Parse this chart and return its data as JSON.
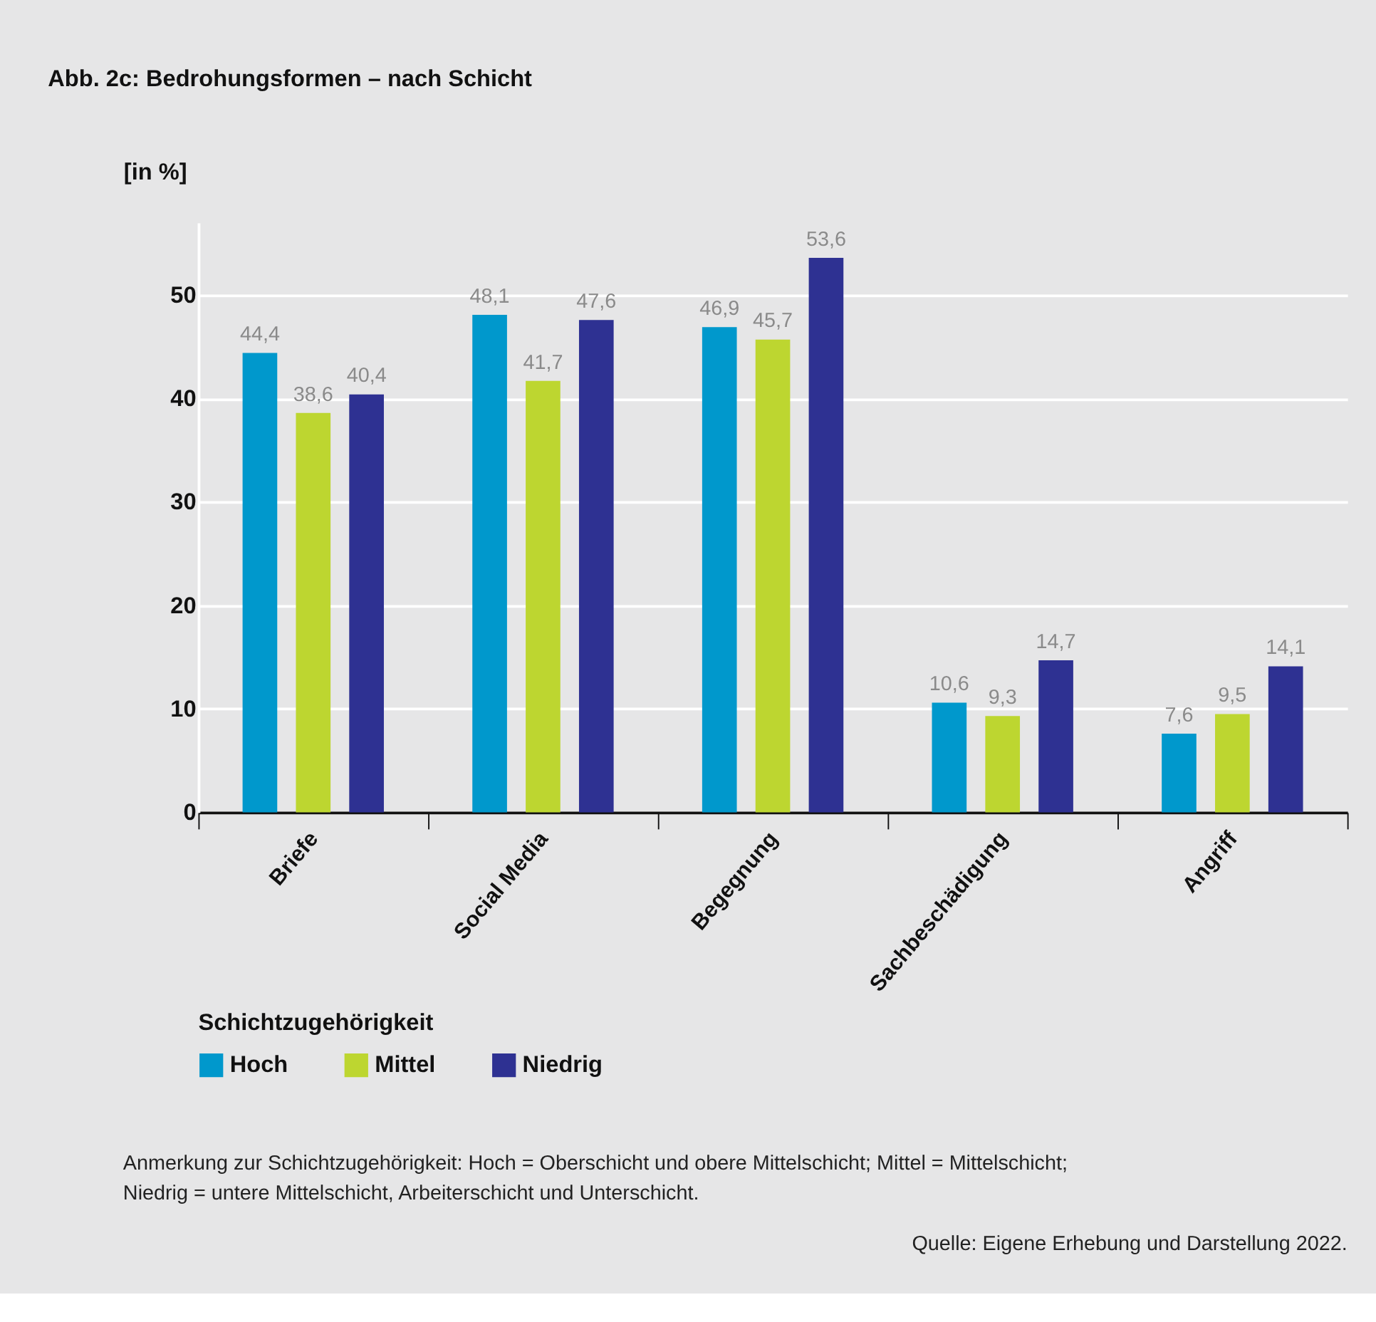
{
  "chart_data": {
    "type": "bar",
    "title": "Abb. 2c: Bedrohungsformen – nach Schicht",
    "ylabel": "[in %]",
    "legend_title": "Schichtzugehörigkeit",
    "categories": [
      "Briefe",
      "Social Media",
      "Begegnung",
      "Sachbeschädigung",
      "Angriff"
    ],
    "series": [
      {
        "name": "Hoch",
        "color": "#0098cc",
        "values": [
          44.4,
          48.1,
          46.9,
          10.6,
          7.6
        ],
        "value_labels": [
          "44,4",
          "48,1",
          "46,9",
          "10,6",
          "7,6"
        ]
      },
      {
        "name": "Mittel",
        "color": "#bdd630",
        "values": [
          38.6,
          41.7,
          45.7,
          9.3,
          9.5
        ],
        "value_labels": [
          "38,6",
          "41,7",
          "45,7",
          "9,3",
          "9,5"
        ]
      },
      {
        "name": "Niedrig",
        "color": "#2e3192",
        "values": [
          40.4,
          47.6,
          53.6,
          14.7,
          14.1
        ],
        "value_labels": [
          "40,4",
          "47,6",
          "53,6",
          "14,7",
          "14,1"
        ]
      }
    ],
    "ylim": [
      0,
      57
    ],
    "yticks": [
      0,
      10,
      20,
      30,
      40,
      50
    ],
    "grid": "y",
    "legend": "bottom",
    "annotations": [
      "Anmerkung zur Schichtzugehörigkeit: Hoch = Oberschicht und obere Mittelschicht; Mittel = Mittelschicht; Niedrig = untere Mittelschicht, Arbeiterschicht und Unterschicht.",
      "Quelle:  Eigene Erhebung und Darstellung 2022."
    ]
  }
}
